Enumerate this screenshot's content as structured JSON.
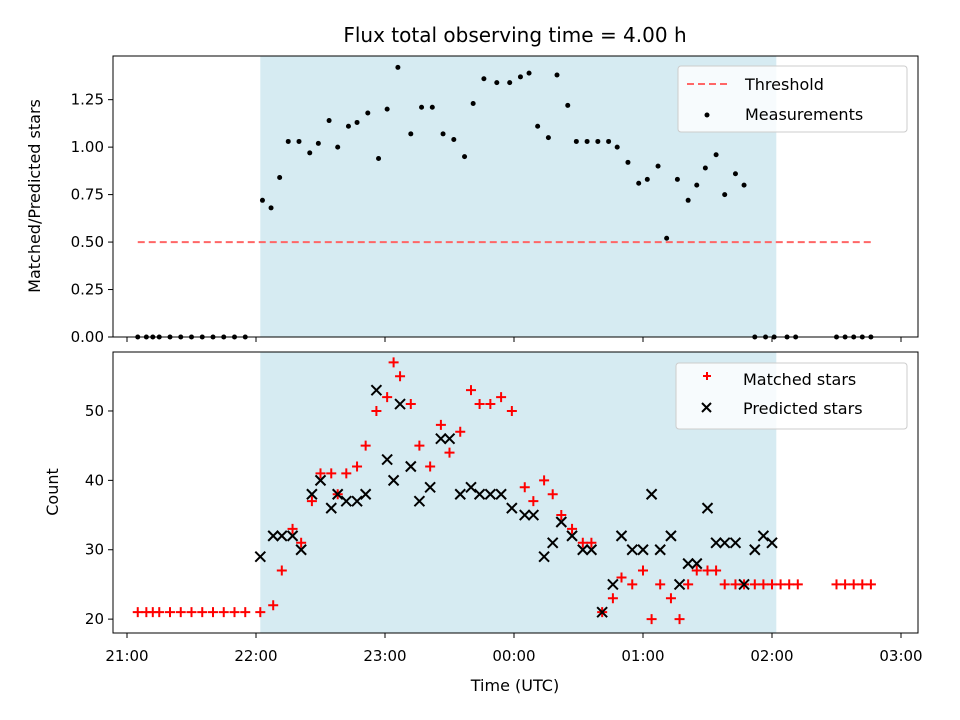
{
  "chart_data": [
    {
      "type": "scatter",
      "title": "Flux total observing time = 4.00 h",
      "xlabel": "",
      "ylabel": "Matched/Predicted stars",
      "ylim": [
        0,
        1.48
      ],
      "xlim": [
        "21:00",
        "03:00"
      ],
      "yticks": [
        "0.00",
        "0.25",
        "0.50",
        "0.75",
        "1.00",
        "1.25"
      ],
      "ytick_values": [
        0,
        0.25,
        0.5,
        0.75,
        1.0,
        1.25
      ],
      "shaded_range": [
        "22:02",
        "02:02"
      ],
      "shade_color": "#add8e6",
      "legend_position": "upper right",
      "threshold": {
        "name": "Threshold",
        "value": 0.5,
        "x_start": "21:05",
        "x_end": "02:46",
        "color": "#ff6666",
        "style": "dashed"
      },
      "series": [
        {
          "name": "Measurements",
          "marker": "dot",
          "color": "#000000",
          "x": [
            "21:05",
            "21:09",
            "21:12",
            "21:15",
            "21:20",
            "21:25",
            "21:30",
            "21:35",
            "21:40",
            "21:45",
            "21:50",
            "21:55",
            "22:03",
            "22:07",
            "22:11",
            "22:15",
            "22:20",
            "22:25",
            "22:29",
            "22:34",
            "22:38",
            "22:43",
            "22:47",
            "22:52",
            "22:57",
            "23:01",
            "23:06",
            "23:12",
            "23:17",
            "23:22",
            "23:27",
            "23:32",
            "23:37",
            "23:41",
            "23:46",
            "23:52",
            "23:58",
            "00:03",
            "00:07",
            "00:11",
            "00:16",
            "00:20",
            "00:25",
            "00:29",
            "00:34",
            "00:39",
            "00:44",
            "00:48",
            "00:53",
            "00:58",
            "01:02",
            "01:07",
            "01:11",
            "01:16",
            "01:21",
            "01:25",
            "01:29",
            "01:34",
            "01:38",
            "01:43",
            "01:47",
            "01:52",
            "01:57",
            "02:01",
            "02:07",
            "02:11",
            "02:30",
            "02:34",
            "02:38",
            "02:42",
            "02:46"
          ],
          "y": [
            0,
            0,
            0,
            0,
            0,
            0,
            0,
            0,
            0,
            0,
            0,
            0,
            0.72,
            0.68,
            0.84,
            1.03,
            1.03,
            0.97,
            1.02,
            1.14,
            1.0,
            1.11,
            1.13,
            1.18,
            0.94,
            1.2,
            1.42,
            1.07,
            1.21,
            1.21,
            1.07,
            1.04,
            0.95,
            1.23,
            1.36,
            1.34,
            1.34,
            1.37,
            1.39,
            1.11,
            1.05,
            1.38,
            1.22,
            1.03,
            1.03,
            1.03,
            1.03,
            1.0,
            0.92,
            0.81,
            0.83,
            0.9,
            0.52,
            0.83,
            0.72,
            0.8,
            0.89,
            0.96,
            0.75,
            0.86,
            0.8,
            0,
            0,
            0,
            0,
            0,
            0,
            0,
            0,
            0,
            0
          ]
        }
      ]
    },
    {
      "type": "scatter",
      "title": "",
      "xlabel": "Time (UTC)",
      "ylabel": "Count",
      "ylim": [
        18,
        58.5
      ],
      "xlim": [
        "21:00",
        "03:00"
      ],
      "xticks": [
        "21:00",
        "22:00",
        "23:00",
        "00:00",
        "01:00",
        "02:00",
        "03:00"
      ],
      "yticks": [
        "20",
        "30",
        "40",
        "50"
      ],
      "ytick_values": [
        20,
        30,
        40,
        50
      ],
      "shaded_range": [
        "22:02",
        "02:02"
      ],
      "shade_color": "#add8e6",
      "legend_position": "upper right",
      "series": [
        {
          "name": "Matched stars",
          "marker": "plus",
          "color": "#ff0000",
          "x": [
            "21:05",
            "21:09",
            "21:12",
            "21:15",
            "21:20",
            "21:25",
            "21:30",
            "21:35",
            "21:40",
            "21:45",
            "21:50",
            "21:55",
            "22:02",
            "22:08",
            "22:12",
            "22:17",
            "22:21",
            "22:26",
            "22:30",
            "22:35",
            "22:38",
            "22:42",
            "22:47",
            "22:51",
            "22:56",
            "23:01",
            "23:04",
            "23:07",
            "23:12",
            "23:16",
            "23:21",
            "23:26",
            "23:30",
            "23:35",
            "23:40",
            "23:44",
            "23:49",
            "23:54",
            "23:59",
            "00:05",
            "00:09",
            "00:14",
            "00:18",
            "00:22",
            "00:27",
            "00:32",
            "00:36",
            "00:41",
            "00:46",
            "00:50",
            "00:55",
            "01:00",
            "01:04",
            "01:08",
            "01:13",
            "01:17",
            "01:21",
            "01:25",
            "01:30",
            "01:34",
            "01:38",
            "01:43",
            "01:47",
            "01:52",
            "01:56",
            "02:00",
            "02:04",
            "02:08",
            "02:12",
            "02:30",
            "02:34",
            "02:38",
            "02:42",
            "02:46"
          ],
          "y": [
            21,
            21,
            21,
            21,
            21,
            21,
            21,
            21,
            21,
            21,
            21,
            21,
            21,
            22,
            27,
            33,
            31,
            37,
            41,
            41,
            38,
            41,
            42,
            45,
            50,
            52,
            57,
            55,
            51,
            45,
            42,
            48,
            44,
            47,
            53,
            51,
            51,
            52,
            50,
            39,
            37,
            40,
            38,
            35,
            33,
            31,
            31,
            21,
            23,
            26,
            25,
            27,
            20,
            25,
            23,
            20,
            25,
            27,
            27,
            27,
            25,
            25,
            25,
            25,
            25,
            25,
            25,
            25,
            25,
            25,
            25,
            25,
            25,
            25
          ]
        },
        {
          "name": "Predicted stars",
          "marker": "x",
          "color": "#000000",
          "x": [
            "22:02",
            "22:08",
            "22:12",
            "22:17",
            "22:21",
            "22:26",
            "22:30",
            "22:35",
            "22:38",
            "22:42",
            "22:47",
            "22:51",
            "22:56",
            "23:01",
            "23:04",
            "23:07",
            "23:12",
            "23:16",
            "23:21",
            "23:26",
            "23:30",
            "23:35",
            "23:40",
            "23:44",
            "23:49",
            "23:54",
            "23:59",
            "00:05",
            "00:09",
            "00:14",
            "00:18",
            "00:22",
            "00:27",
            "00:32",
            "00:36",
            "00:41",
            "00:46",
            "00:50",
            "00:55",
            "01:00",
            "01:04",
            "01:08",
            "01:13",
            "01:17",
            "01:21",
            "01:25",
            "01:30",
            "01:34",
            "01:38",
            "01:43",
            "01:47",
            "01:52",
            "01:56",
            "02:00"
          ],
          "y": [
            29,
            32,
            32,
            32,
            30,
            38,
            40,
            36,
            38,
            37,
            37,
            38,
            53,
            43,
            40,
            51,
            42,
            37,
            39,
            46,
            46,
            38,
            39,
            38,
            38,
            38,
            36,
            35,
            35,
            29,
            31,
            34,
            32,
            30,
            30,
            21,
            25,
            32,
            30,
            30,
            38,
            30,
            32,
            25,
            28,
            28,
            36,
            31,
            31,
            31,
            25,
            30,
            32,
            31
          ]
        }
      ]
    }
  ]
}
